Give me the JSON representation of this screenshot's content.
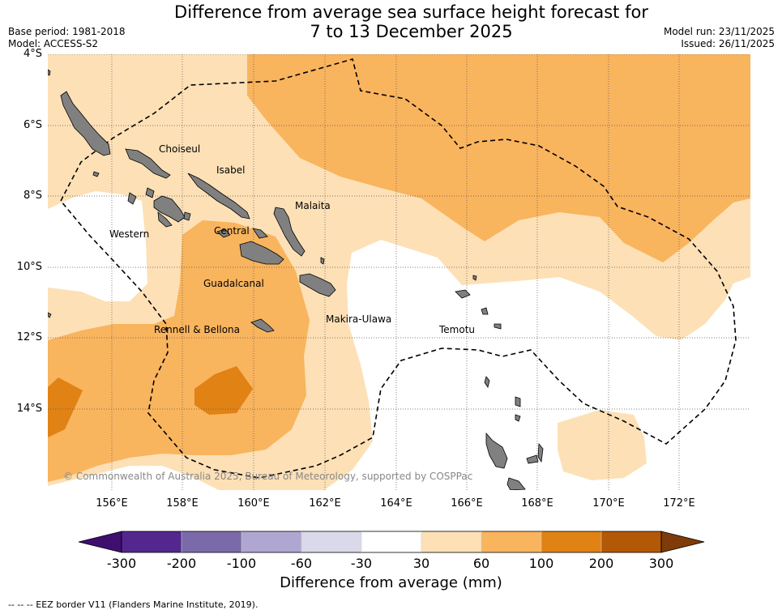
{
  "title": {
    "line1": "Difference from average sea surface height forecast for",
    "line2": "7 to 13 December 2025"
  },
  "meta": {
    "base_period": "Base period: 1981-2018",
    "model": "Model: ACCESS-S2",
    "model_run": "Model run: 23/11/2025",
    "issued": "Issued: 26/11/2025"
  },
  "map": {
    "lat_labels": [
      "4°S",
      "6°S",
      "8°S",
      "10°S",
      "12°S",
      "14°S"
    ],
    "lon_labels": [
      "156°E",
      "158°E",
      "160°E",
      "162°E",
      "164°E",
      "166°E",
      "168°E",
      "170°E",
      "172°E"
    ],
    "places": [
      "Choiseul",
      "Isabel",
      "Malaita",
      "Western",
      "Central",
      "Guadalcanal",
      "Makira-Ulawa",
      "Rennell & Bellona",
      "Temotu"
    ],
    "copyright": "© Commonwealth of Australia 2025, Bureau of Meteorology, supported by COSPPac",
    "land_color": "#808080",
    "grid": "dotted"
  },
  "colorbar": {
    "ticks": [
      "-300",
      "-200",
      "-100",
      "-60",
      "-30",
      "30",
      "60",
      "100",
      "200",
      "300"
    ],
    "colors": [
      "#3f0f6f",
      "#54278f",
      "#7b6aa9",
      "#afa7d1",
      "#d9d9ea",
      "#ffffff",
      "#fde0b6",
      "#f9b45e",
      "#e08214",
      "#b35806",
      "#7f3b08"
    ],
    "label": "Difference from average (mm)"
  },
  "legend": {
    "eez": "--  --  -- EEZ border V11 (Flanders Marine Institute, 2019)."
  }
}
